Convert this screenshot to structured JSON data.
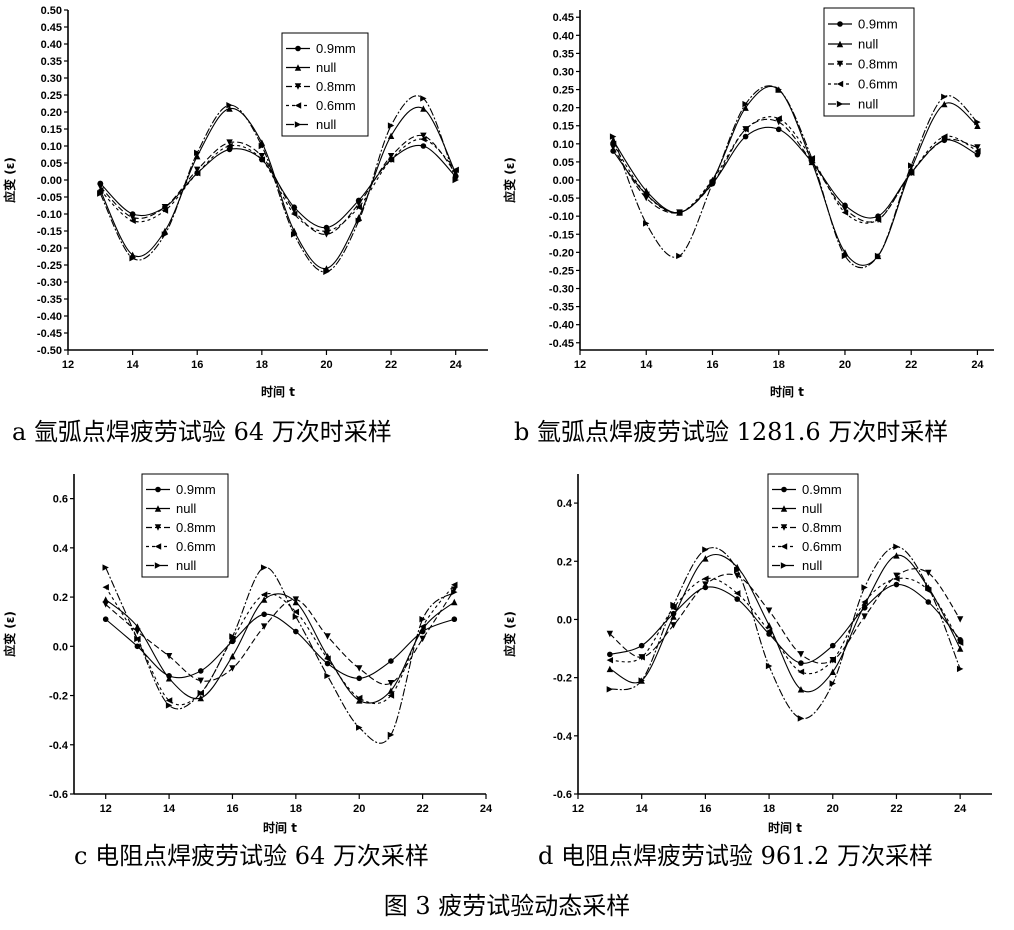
{
  "figure_title": "图 3 疲劳试验动态采样",
  "chart_data": [
    {
      "type": "line",
      "caption": "a 氩弧点焊疲劳试验 64 万次时采样",
      "xlabel": "时间 t",
      "ylabel": "应变 (ε)",
      "xlim": [
        12,
        25
      ],
      "xticks": [
        12,
        14,
        16,
        18,
        20,
        22,
        24
      ],
      "ylim": [
        -0.5,
        0.5
      ],
      "yticks": [
        -0.5,
        -0.45,
        -0.4,
        -0.35,
        -0.3,
        -0.25,
        -0.2,
        -0.15,
        -0.1,
        -0.05,
        0,
        0.05,
        0.1,
        0.15,
        0.2,
        0.25,
        0.3,
        0.35,
        0.4,
        0.45,
        0.5
      ],
      "ytick_labels": [
        "-0.50",
        "-0.45",
        "-0.40",
        "-0.35",
        "-0.30",
        "-0.25",
        "-0.20",
        "-0.15",
        "-0.10",
        "-0.05",
        "0.00",
        "0.05",
        "0.10",
        "0.15",
        "0.20",
        "0.25",
        "0.30",
        "0.35",
        "0.40",
        "0.45",
        "0.50"
      ],
      "legend_position": "top-center",
      "x": [
        13,
        14,
        15,
        16,
        17,
        18,
        19,
        20,
        21,
        22,
        23,
        24
      ],
      "series": [
        {
          "name": "0.9mm",
          "marker": "circle",
          "dash": "",
          "values": [
            -0.01,
            -0.1,
            -0.08,
            0.02,
            0.09,
            0.06,
            -0.08,
            -0.14,
            -0.06,
            0.06,
            0.1,
            0.01
          ]
        },
        {
          "name": "null",
          "marker": "triangle",
          "dash": "",
          "values": [
            -0.03,
            -0.22,
            -0.15,
            0.07,
            0.21,
            0.11,
            -0.15,
            -0.26,
            -0.11,
            0.13,
            0.21,
            0.02
          ]
        },
        {
          "name": "0.8mm",
          "marker": "tri-down",
          "dash": "6,3",
          "values": [
            -0.02,
            -0.11,
            -0.08,
            0.03,
            0.11,
            0.07,
            -0.09,
            -0.16,
            -0.07,
            0.07,
            0.13,
            0.02
          ]
        },
        {
          "name": "0.6mm",
          "marker": "tri-left",
          "dash": "3,3",
          "values": [
            -0.03,
            -0.12,
            -0.09,
            0.02,
            0.1,
            0.06,
            -0.1,
            -0.15,
            -0.08,
            0.06,
            0.12,
            0.03
          ]
        },
        {
          "name": "null",
          "marker": "tri-right",
          "dash": "8,2,2,2",
          "values": [
            -0.04,
            -0.23,
            -0.16,
            0.08,
            0.22,
            0.1,
            -0.16,
            -0.27,
            -0.12,
            0.16,
            0.24,
            0.0
          ]
        }
      ]
    },
    {
      "type": "line",
      "caption": "b 氩弧点焊疲劳试验 1281.6 万次时采样",
      "xlabel": "时间 t",
      "ylabel": "应变 (ε)",
      "xlim": [
        12,
        24.5
      ],
      "xticks": [
        12,
        14,
        16,
        18,
        20,
        22,
        24
      ],
      "ylim": [
        -0.47,
        0.47
      ],
      "yticks": [
        -0.45,
        -0.4,
        -0.35,
        -0.3,
        -0.25,
        -0.2,
        -0.15,
        -0.1,
        -0.05,
        0,
        0.05,
        0.1,
        0.15,
        0.2,
        0.25,
        0.3,
        0.35,
        0.4,
        0.45
      ],
      "ytick_labels": [
        "-0.45",
        "-0.40",
        "-0.35",
        "-0.30",
        "-0.25",
        "-0.20",
        "-0.15",
        "-0.10",
        "-0.05",
        "0.00",
        "0.05",
        "0.10",
        "0.15",
        "0.20",
        "0.25",
        "0.30",
        "0.35",
        "0.40",
        "0.45"
      ],
      "legend_position": "top-right",
      "x": [
        13,
        14,
        15,
        16,
        17,
        18,
        19,
        20,
        21,
        22,
        23,
        24
      ],
      "series": [
        {
          "name": "0.9mm",
          "marker": "circle",
          "dash": "",
          "values": [
            0.08,
            -0.04,
            -0.09,
            -0.01,
            0.12,
            0.14,
            0.05,
            -0.07,
            -0.1,
            0.02,
            0.11,
            0.07
          ]
        },
        {
          "name": "null",
          "marker": "triangle",
          "dash": "",
          "values": [
            0.11,
            -0.03,
            -0.09,
            0.0,
            0.2,
            0.25,
            0.05,
            -0.2,
            -0.21,
            0.03,
            0.21,
            0.15
          ]
        },
        {
          "name": "0.8mm",
          "marker": "tri-down",
          "dash": "6,3",
          "values": [
            0.09,
            -0.05,
            -0.09,
            -0.01,
            0.14,
            0.16,
            0.05,
            -0.08,
            -0.11,
            0.02,
            0.11,
            0.09
          ]
        },
        {
          "name": "0.6mm",
          "marker": "tri-left",
          "dash": "3,3",
          "values": [
            0.1,
            -0.04,
            -0.09,
            0.0,
            0.14,
            0.17,
            0.06,
            -0.09,
            -0.11,
            0.02,
            0.12,
            0.08
          ]
        },
        {
          "name": "null",
          "marker": "tri-right",
          "dash": "8,2,2,2",
          "values": [
            0.12,
            -0.12,
            -0.21,
            -0.01,
            0.21,
            0.25,
            0.06,
            -0.21,
            -0.21,
            0.04,
            0.23,
            0.16
          ]
        }
      ]
    },
    {
      "type": "line",
      "caption": "c 电阻点焊疲劳试验 64 万次采样",
      "xlabel": "时间 t",
      "ylabel": "应变 (ε)",
      "xlim": [
        11,
        24
      ],
      "xticks": [
        12,
        14,
        16,
        18,
        20,
        22,
        24
      ],
      "ylim": [
        -0.6,
        0.7
      ],
      "yticks": [
        -0.6,
        -0.4,
        -0.2,
        0,
        0.2,
        0.4,
        0.6
      ],
      "ytick_labels": [
        "-0.6",
        "-0.4",
        "-0.2",
        "0.0",
        "0.2",
        "0.4",
        "0.6"
      ],
      "legend_position": "top-left",
      "x": [
        12,
        13,
        14,
        15,
        16,
        17,
        18,
        19,
        20,
        21,
        22,
        23
      ],
      "series": [
        {
          "name": "0.9mm",
          "marker": "circle",
          "dash": "",
          "values": [
            0.11,
            0.0,
            -0.12,
            -0.1,
            0.02,
            0.13,
            0.06,
            -0.07,
            -0.13,
            -0.06,
            0.06,
            0.11
          ]
        },
        {
          "name": "null",
          "marker": "triangle",
          "dash": "",
          "values": [
            0.19,
            0.08,
            -0.13,
            -0.21,
            -0.04,
            0.19,
            0.18,
            -0.04,
            -0.22,
            -0.18,
            0.07,
            0.18
          ]
        },
        {
          "name": "0.8mm",
          "marker": "tri-down",
          "dash": "6,3",
          "values": [
            0.17,
            0.06,
            -0.04,
            -0.14,
            -0.09,
            0.08,
            0.19,
            0.04,
            -0.09,
            -0.15,
            0.03,
            0.23
          ]
        },
        {
          "name": "0.6mm",
          "marker": "tri-left",
          "dash": "3,3",
          "values": [
            0.24,
            0.03,
            -0.22,
            -0.19,
            0.03,
            0.21,
            0.14,
            -0.05,
            -0.21,
            -0.2,
            0.08,
            0.25
          ]
        },
        {
          "name": "null",
          "marker": "tri-right",
          "dash": "8,2,2,2",
          "values": [
            0.32,
            0.03,
            -0.24,
            -0.19,
            0.04,
            0.32,
            0.12,
            -0.12,
            -0.33,
            -0.36,
            0.11,
            0.22
          ]
        }
      ]
    },
    {
      "type": "line",
      "caption": "d 电阻点焊疲劳试验 961.2 万次采样",
      "xlabel": "时间 t",
      "ylabel": "应变 (ε)",
      "xlim": [
        12,
        25
      ],
      "xticks": [
        12,
        14,
        16,
        18,
        20,
        22,
        24
      ],
      "ylim": [
        -0.6,
        0.5
      ],
      "yticks": [
        -0.6,
        -0.4,
        -0.2,
        0,
        0.2,
        0.4
      ],
      "ytick_labels": [
        "-0.6",
        "-0.4",
        "-0.2",
        "0.0",
        "0.2",
        "0.4"
      ],
      "legend_position": "top-center",
      "x": [
        13,
        14,
        15,
        16,
        17,
        18,
        19,
        20,
        21,
        22,
        23,
        24
      ],
      "series": [
        {
          "name": "0.9mm",
          "marker": "circle",
          "dash": "",
          "values": [
            -0.12,
            -0.09,
            0.02,
            0.11,
            0.07,
            -0.05,
            -0.15,
            -0.09,
            0.04,
            0.12,
            0.06,
            -0.07
          ]
        },
        {
          "name": "null",
          "marker": "triangle",
          "dash": "",
          "values": [
            -0.17,
            -0.21,
            0.01,
            0.21,
            0.18,
            -0.02,
            -0.24,
            -0.18,
            0.05,
            0.22,
            0.11,
            -0.1
          ]
        },
        {
          "name": "0.8mm",
          "marker": "tri-down",
          "dash": "6,3",
          "values": [
            -0.05,
            -0.13,
            -0.02,
            0.12,
            0.15,
            0.03,
            -0.12,
            -0.14,
            0.01,
            0.15,
            0.16,
            0.0
          ]
        },
        {
          "name": "0.6mm",
          "marker": "tri-left",
          "dash": "3,3",
          "values": [
            -0.14,
            -0.13,
            0.04,
            0.14,
            0.09,
            -0.04,
            -0.18,
            -0.14,
            0.06,
            0.14,
            0.1,
            -0.08
          ]
        },
        {
          "name": "null",
          "marker": "tri-right",
          "dash": "8,2,2,2",
          "values": [
            -0.24,
            -0.21,
            0.05,
            0.24,
            0.17,
            -0.16,
            -0.34,
            -0.22,
            0.11,
            0.25,
            0.11,
            -0.17
          ]
        }
      ]
    }
  ]
}
